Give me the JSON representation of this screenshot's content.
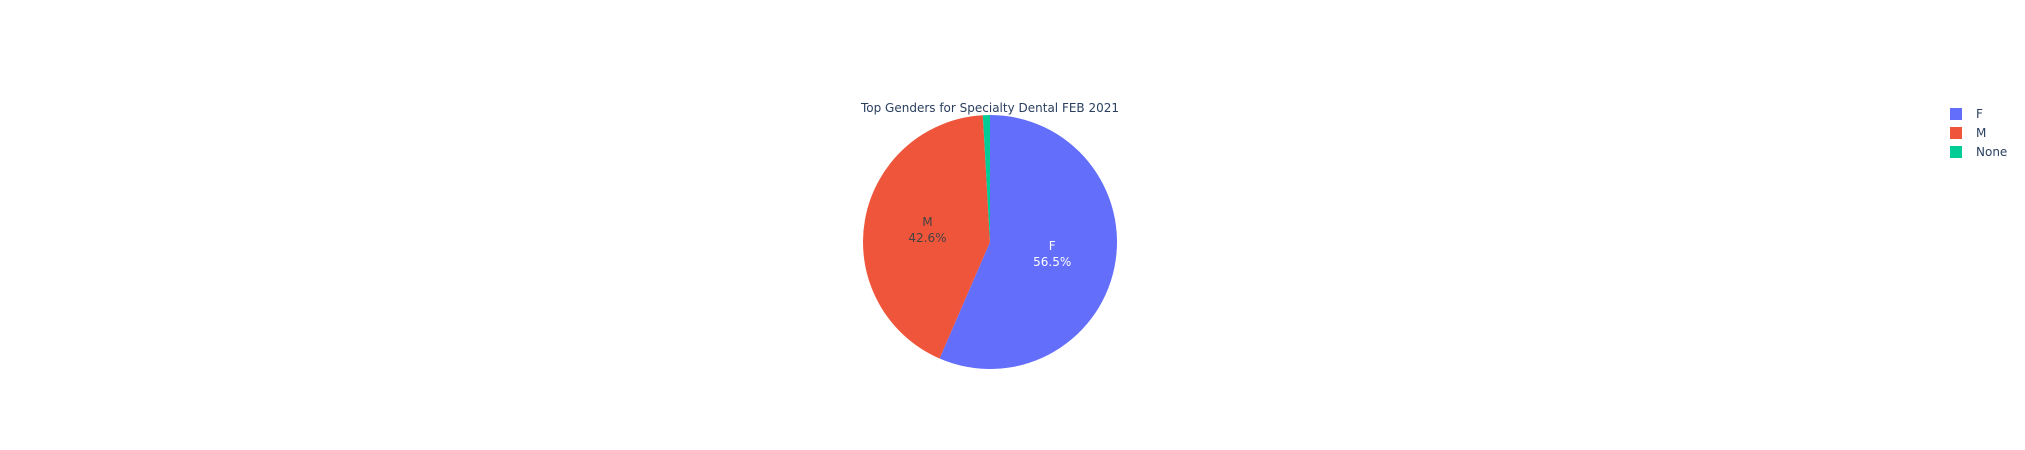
{
  "chart_data": {
    "type": "pie",
    "title": "Top Genders for Specialty Dental FEB 2021",
    "categories": [
      "F",
      "M",
      "None"
    ],
    "values": [
      56.5,
      42.6,
      0.9
    ],
    "percent_labels": [
      "56.5%",
      "42.6%",
      ""
    ],
    "colors": [
      "#636efa",
      "#ef553b",
      "#00cc96"
    ],
    "label_colors": [
      "#ffffff",
      "#444444",
      "#444444"
    ],
    "sort_order": "descending",
    "direction": "clockwise",
    "start_angle": "top",
    "legend": {
      "placement": "top-right",
      "items": [
        "F",
        "M",
        "None"
      ]
    }
  }
}
